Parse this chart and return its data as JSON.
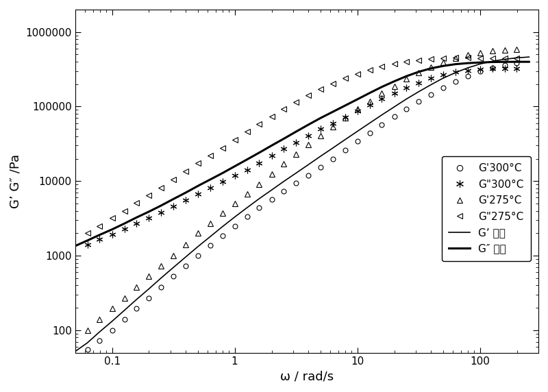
{
  "title": "",
  "xlabel": "ω / rad/s",
  "ylabel": "G’ G″ /Pa",
  "xlim": [
    0.05,
    300
  ],
  "ylim": [
    50,
    2000000
  ],
  "background_color": "#ffffff",
  "G_prime_300_x": [
    0.063,
    0.079,
    0.1,
    0.126,
    0.158,
    0.2,
    0.251,
    0.316,
    0.398,
    0.5,
    0.631,
    0.794,
    1.0,
    1.26,
    1.58,
    2.0,
    2.51,
    3.16,
    3.98,
    5.0,
    6.31,
    7.94,
    10.0,
    12.6,
    15.8,
    20.0,
    25.1,
    31.6,
    39.8,
    50.0,
    63.1,
    79.4,
    100.0,
    125.9,
    158.5,
    199.5
  ],
  "G_prime_300_y": [
    55,
    72,
    100,
    140,
    195,
    270,
    380,
    530,
    730,
    1000,
    1380,
    1870,
    2500,
    3350,
    4400,
    5700,
    7400,
    9500,
    12000,
    15500,
    20000,
    26000,
    34000,
    44000,
    57000,
    73000,
    92000,
    116000,
    145000,
    180000,
    215000,
    255000,
    295000,
    330000,
    360000,
    385000
  ],
  "G_double_prime_300_x": [
    0.063,
    0.079,
    0.1,
    0.126,
    0.158,
    0.2,
    0.251,
    0.316,
    0.398,
    0.5,
    0.631,
    0.794,
    1.0,
    1.26,
    1.58,
    2.0,
    2.51,
    3.16,
    3.98,
    5.0,
    6.31,
    7.94,
    10.0,
    12.6,
    15.8,
    20.0,
    25.1,
    31.6,
    39.8,
    50.0,
    63.1,
    79.4,
    100.0,
    125.9,
    158.5,
    199.5
  ],
  "G_double_prime_300_y": [
    1400,
    1650,
    1950,
    2300,
    2700,
    3200,
    3800,
    4600,
    5600,
    6800,
    8200,
    9800,
    11800,
    14200,
    17500,
    22000,
    27000,
    33000,
    41000,
    50000,
    60000,
    72000,
    87000,
    105000,
    127000,
    152000,
    180000,
    208000,
    238000,
    265000,
    288000,
    305000,
    315000,
    320000,
    323000,
    325000
  ],
  "G_prime_275_x": [
    0.063,
    0.079,
    0.1,
    0.126,
    0.158,
    0.2,
    0.251,
    0.316,
    0.398,
    0.5,
    0.631,
    0.794,
    1.0,
    1.26,
    1.58,
    2.0,
    2.51,
    3.16,
    3.98,
    5.0,
    6.31,
    7.94,
    10.0,
    12.6,
    15.8,
    20.0,
    25.1,
    31.6,
    39.8,
    50.0,
    63.1,
    79.4,
    100.0,
    125.9,
    158.5,
    199.5
  ],
  "G_prime_275_y": [
    100,
    140,
    195,
    270,
    380,
    530,
    730,
    1000,
    1400,
    2000,
    2700,
    3700,
    5000,
    6700,
    9000,
    12500,
    17000,
    23000,
    31000,
    41000,
    54000,
    71000,
    92000,
    118000,
    150000,
    188000,
    235000,
    285000,
    340000,
    395000,
    445000,
    490000,
    525000,
    555000,
    575000,
    590000
  ],
  "G_double_prime_275_x": [
    0.063,
    0.079,
    0.1,
    0.126,
    0.158,
    0.2,
    0.251,
    0.316,
    0.398,
    0.5,
    0.631,
    0.794,
    1.0,
    1.26,
    1.58,
    2.0,
    2.51,
    3.16,
    3.98,
    5.0,
    6.31,
    7.94,
    10.0,
    12.6,
    15.8,
    20.0,
    25.1,
    31.6,
    39.8,
    50.0,
    63.1,
    79.4,
    100.0,
    125.9,
    158.5,
    199.5
  ],
  "G_double_prime_275_y": [
    2000,
    2500,
    3200,
    4000,
    5100,
    6500,
    8200,
    10500,
    13500,
    17500,
    22000,
    28000,
    36000,
    46000,
    58000,
    74000,
    92000,
    115000,
    142000,
    172000,
    205000,
    240000,
    275000,
    310000,
    345000,
    375000,
    400000,
    420000,
    435000,
    445000,
    450000,
    450000,
    448000,
    445000,
    442000,
    440000
  ],
  "fit_G_prime_x": [
    0.05,
    0.063,
    0.079,
    0.1,
    0.126,
    0.158,
    0.2,
    0.251,
    0.316,
    0.398,
    0.5,
    0.631,
    0.794,
    1.0,
    1.26,
    1.58,
    2.0,
    2.51,
    3.16,
    3.98,
    5.0,
    6.31,
    7.94,
    10.0,
    12.6,
    15.8,
    20.0,
    25.1,
    31.6,
    39.8,
    50.0,
    63.1,
    79.4,
    100.0,
    125.9,
    158.5,
    199.5,
    251.2
  ],
  "fit_G_prime_y": [
    52,
    68,
    95,
    132,
    185,
    258,
    360,
    502,
    695,
    960,
    1320,
    1800,
    2450,
    3300,
    4400,
    5800,
    7600,
    9900,
    12800,
    16600,
    21500,
    27800,
    36000,
    46500,
    60000,
    77000,
    99000,
    126000,
    158000,
    196000,
    240000,
    285000,
    330000,
    372000,
    405000,
    430000,
    450000,
    462000
  ],
  "fit_G_double_prime_x": [
    0.05,
    0.063,
    0.079,
    0.1,
    0.126,
    0.158,
    0.2,
    0.251,
    0.316,
    0.398,
    0.5,
    0.631,
    0.794,
    1.0,
    1.26,
    1.58,
    2.0,
    2.51,
    3.16,
    3.98,
    5.0,
    6.31,
    7.94,
    10.0,
    12.6,
    15.8,
    20.0,
    25.1,
    31.6,
    39.8,
    50.0,
    63.1,
    79.4,
    100.0,
    125.9,
    158.5,
    199.5,
    251.2
  ],
  "fit_G_double_prime_y": [
    1350,
    1600,
    1900,
    2250,
    2700,
    3250,
    3900,
    4700,
    5750,
    7000,
    8600,
    10500,
    12800,
    15800,
    19500,
    24000,
    30000,
    37000,
    46000,
    57000,
    70000,
    85000,
    103000,
    125000,
    152000,
    183000,
    218000,
    255000,
    292000,
    325000,
    350000,
    370000,
    382000,
    390000,
    395000,
    397000,
    398000,
    398000
  ],
  "yticks": [
    100,
    1000,
    10000,
    100000,
    1000000
  ],
  "ytick_labels": [
    "100",
    "1000",
    "10000",
    "100000",
    "1000000"
  ],
  "xticks": [
    0.1,
    1,
    10,
    100
  ],
  "xtick_labels": [
    "0.1",
    "1",
    "10",
    "100"
  ]
}
